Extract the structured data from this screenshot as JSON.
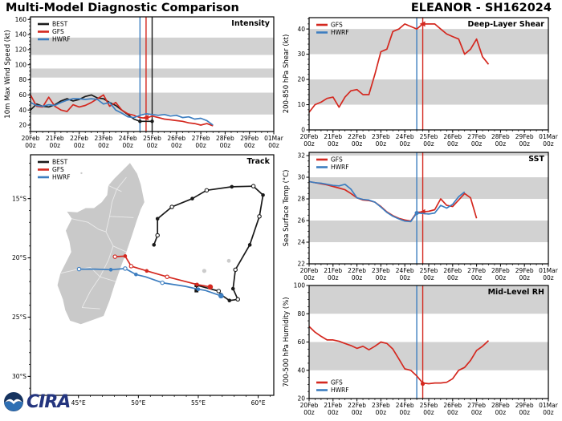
{
  "header": {
    "title_left": "Multi-Model Diagnostic Comparison",
    "title_right": "ELEANOR - SH162024"
  },
  "logo": {
    "cira_text": "CIRA",
    "noaa_icon": "noaa-emblem"
  },
  "colors": {
    "best": "#1a1a1a",
    "gfs": "#d4281f",
    "hwrf": "#3d7ec0",
    "band": "#d2d2d2",
    "land": "#c9c9c9",
    "land_border": "#ebebeb",
    "island": "#cccccc",
    "frame": "#000000"
  },
  "time_axis": {
    "dates": [
      "20Feb",
      "21Feb",
      "22Feb",
      "23Feb",
      "24Feb",
      "25Feb",
      "26Feb",
      "27Feb",
      "28Feb",
      "29Feb",
      "01Mar"
    ],
    "hour": "00z",
    "days_span": 10
  },
  "chart_data": [
    {
      "id": "intensity",
      "type": "line",
      "title": "Intensity",
      "ylabel": "10m Max Wind Speed (kt)",
      "ylim": [
        11.5,
        163.5
      ],
      "yticks": [
        20,
        40,
        60,
        80,
        100,
        120,
        140,
        160
      ],
      "yminor": 5,
      "bands": [
        [
          34,
          63
        ],
        [
          83,
          95
        ],
        [
          113,
          136
        ]
      ],
      "legend": [
        "BEST",
        "GFS",
        "HWRF"
      ],
      "legend_pos": "top-left",
      "vlines": [
        {
          "series": "HWRF",
          "t": 4.5
        },
        {
          "series": "GFS",
          "t": 4.75
        },
        {
          "series": "BEST",
          "t": 5.0
        }
      ],
      "series": [
        {
          "name": "BEST",
          "color_key": "best",
          "t0": 0,
          "dt": 0.25,
          "values": [
            40,
            48,
            45,
            44,
            47,
            52,
            55,
            52,
            54,
            58,
            60,
            56,
            55,
            50,
            46,
            40,
            34,
            28,
            25,
            25,
            25
          ],
          "dot_markers": [
            [
              4.5,
              25
            ],
            [
              5.0,
              25
            ]
          ]
        },
        {
          "name": "GFS",
          "color_key": "gfs",
          "t0": 0,
          "dt": 0.25,
          "values": [
            60,
            45,
            44,
            57,
            45,
            40,
            38,
            47,
            44,
            46,
            50,
            55,
            60,
            45,
            50,
            40,
            35,
            33,
            30,
            29,
            32,
            30,
            28,
            27,
            26,
            25,
            23,
            22,
            20,
            22,
            19
          ],
          "init_marker": {
            "t": 4.75,
            "v": 30,
            "shape": "tri"
          }
        },
        {
          "name": "HWRF",
          "color_key": "hwrf",
          "t0": 0,
          "dt": 0.25,
          "values": [
            50,
            46,
            45,
            47,
            46,
            50,
            53,
            55,
            55,
            54,
            55,
            54,
            48,
            50,
            40,
            36,
            31,
            30,
            33,
            35,
            34,
            33,
            34,
            32,
            33,
            30,
            31,
            28,
            29,
            26,
            20
          ]
        }
      ]
    },
    {
      "id": "shear",
      "type": "line",
      "title": "Deep-Layer Shear",
      "ylabel": "200-850 hPa Shear (kt)",
      "ylim": [
        0,
        44.5
      ],
      "yticks": [
        0,
        10,
        20,
        30,
        40
      ],
      "yminor": 2,
      "bands": [
        [
          10,
          20
        ],
        [
          30,
          40
        ]
      ],
      "legend": [
        "GFS",
        "HWRF"
      ],
      "legend_pos": "top-left",
      "vlines": [
        {
          "series": "HWRF",
          "t": 4.5
        },
        {
          "series": "GFS",
          "t": 4.75
        }
      ],
      "series": [
        {
          "name": "GFS",
          "color_key": "gfs",
          "t0": 0,
          "dt": 0.25,
          "values": [
            7,
            10,
            11,
            12.5,
            13,
            9,
            13,
            15.5,
            16,
            14,
            14,
            22,
            31,
            32,
            39,
            40,
            42,
            41,
            40,
            42,
            42,
            42,
            40,
            38,
            37,
            36,
            30,
            32,
            36,
            29,
            26
          ],
          "init_marker": {
            "t": 4.75,
            "v": 42,
            "shape": "tri"
          }
        }
      ]
    },
    {
      "id": "sst",
      "type": "line",
      "title": "SST",
      "ylabel": "Sea Surface Temp (°C)",
      "ylim": [
        22,
        32.3
      ],
      "yticks": [
        22,
        24,
        26,
        28,
        30,
        32
      ],
      "yminor": 0.5,
      "bands": [
        [
          24,
          26
        ],
        [
          28,
          30
        ],
        [
          32,
          32.3
        ]
      ],
      "legend": [
        "GFS",
        "HWRF"
      ],
      "legend_pos": "top-left",
      "vlines": [
        {
          "series": "HWRF",
          "t": 4.5
        },
        {
          "series": "GFS",
          "t": 4.75
        }
      ],
      "series": [
        {
          "name": "GFS",
          "color_key": "gfs",
          "t0": 0,
          "dt": 0.25,
          "values": [
            29.6,
            29.5,
            29.4,
            29.3,
            29.15,
            29.0,
            28.85,
            28.5,
            28.1,
            27.9,
            27.85,
            27.7,
            27.3,
            26.8,
            26.45,
            26.2,
            26.05,
            25.95,
            26.75,
            26.8,
            26.85,
            27.0,
            28.0,
            27.4,
            27.3,
            27.9,
            28.5,
            28.1,
            26.2
          ],
          "init_marker": {
            "t": 4.75,
            "v": 26.8,
            "shape": "tri"
          }
        },
        {
          "name": "HWRF",
          "color_key": "hwrf",
          "t0": 0,
          "dt": 0.25,
          "values": [
            29.6,
            29.5,
            29.45,
            29.35,
            29.25,
            29.2,
            29.35,
            28.9,
            28.1,
            27.95,
            27.9,
            27.7,
            27.25,
            26.75,
            26.4,
            26.15,
            25.95,
            25.9,
            26.7,
            26.65,
            26.6,
            26.7,
            27.4,
            27.15,
            27.5,
            28.2,
            28.65
          ],
          "init_marker": {
            "t": 4.5,
            "v": 26.7,
            "shape": "dot"
          }
        }
      ]
    },
    {
      "id": "rh",
      "type": "line",
      "title": "Mid-Level RH",
      "ylabel": "700-500 hPa Humidity (%)",
      "ylim": [
        20,
        100
      ],
      "yticks": [
        20,
        40,
        60,
        80,
        100
      ],
      "yminor": 5,
      "bands": [
        [
          40,
          60
        ],
        [
          80,
          100
        ]
      ],
      "legend": [
        "GFS",
        "HWRF"
      ],
      "legend_pos": "bottom-left",
      "vlines": [
        {
          "series": "HWRF",
          "t": 4.5
        },
        {
          "series": "GFS",
          "t": 4.75
        }
      ],
      "series": [
        {
          "name": "GFS",
          "color_key": "gfs",
          "t0": 0,
          "dt": 0.25,
          "values": [
            71,
            67,
            64,
            61.5,
            61.5,
            60.5,
            59,
            57.5,
            55.5,
            57,
            54.5,
            57,
            60,
            59,
            55,
            48,
            41,
            40,
            36,
            31,
            30.5,
            31,
            31,
            31.5,
            34,
            40,
            42,
            47,
            54,
            57,
            61
          ],
          "init_marker": {
            "t": 4.75,
            "v": 30.5,
            "shape": "dot"
          }
        }
      ]
    },
    {
      "id": "track",
      "type": "map",
      "title": "Track",
      "lon_range": [
        41,
        61.3
      ],
      "lat_range": [
        -31.6,
        -11.3
      ],
      "xticks": [
        {
          "v": 45,
          "label": "45°E"
        },
        {
          "v": 50,
          "label": "50°E"
        },
        {
          "v": 55,
          "label": "55°E"
        },
        {
          "v": 60,
          "label": "60°E"
        }
      ],
      "yticks": [
        {
          "v": -15,
          "label": "15°S"
        },
        {
          "v": -20,
          "label": "20°S"
        },
        {
          "v": -25,
          "label": "25°S"
        },
        {
          "v": -30,
          "label": "30°S"
        }
      ],
      "legend": [
        "BEST",
        "GFS",
        "HWRF"
      ],
      "legend_pos": "top-left",
      "tracks": [
        {
          "name": "BEST",
          "color_key": "best",
          "points": [
            [
              51.3,
              -18.9
            ],
            [
              51.6,
              -18.1
            ],
            [
              51.6,
              -16.7
            ],
            [
              52.8,
              -15.7
            ],
            [
              54.5,
              -15.0
            ],
            [
              55.7,
              -14.3
            ],
            [
              57.8,
              -14.0
            ],
            [
              59.6,
              -13.95
            ],
            [
              60.4,
              -14.7
            ],
            [
              60.1,
              -16.5
            ],
            [
              59.3,
              -18.9
            ],
            [
              58.1,
              -21.0
            ],
            [
              57.9,
              -22.6
            ],
            [
              58.3,
              -23.5
            ],
            [
              57.6,
              -23.6
            ],
            [
              56.9,
              -23.1
            ],
            [
              56.7,
              -22.8
            ],
            [
              54.85,
              -22.3
            ],
            [
              54.85,
              -22.75
            ]
          ],
          "markers": [
            "f",
            "o",
            "f",
            "o",
            "f",
            "o",
            "f",
            "o",
            "f",
            "o",
            "f",
            "o",
            "f",
            "o",
            "f",
            "f",
            "o",
            "s",
            "s"
          ]
        },
        {
          "name": "HWRF",
          "color_key": "hwrf",
          "points": [
            [
              56.9,
              -23.2
            ],
            [
              55.6,
              -22.75
            ],
            [
              55.0,
              -22.65
            ],
            [
              53.9,
              -22.4
            ],
            [
              52.0,
              -22.1
            ],
            [
              50.6,
              -21.6
            ],
            [
              49.8,
              -21.4
            ],
            [
              48.9,
              -20.9
            ],
            [
              47.7,
              -21.0
            ],
            [
              46.4,
              -20.95
            ],
            [
              45.05,
              -20.95
            ]
          ],
          "markers": [
            "init",
            "n",
            "f",
            "n",
            "o",
            "n",
            "f",
            "o",
            "f",
            "n",
            "o"
          ]
        },
        {
          "name": "GFS",
          "color_key": "gfs",
          "points": [
            [
              56.0,
              -22.45
            ],
            [
              54.9,
              -22.25
            ],
            [
              52.4,
              -21.6
            ],
            [
              50.7,
              -21.1
            ],
            [
              49.4,
              -20.7
            ],
            [
              48.9,
              -19.85
            ],
            [
              48.05,
              -19.9
            ]
          ],
          "markers": [
            "init",
            "f",
            "o",
            "f",
            "o",
            "f",
            "o"
          ]
        }
      ],
      "geography": {
        "madagascar": [
          [
            49.3,
            -12.0
          ],
          [
            49.9,
            -12.9
          ],
          [
            50.2,
            -13.8
          ],
          [
            50.5,
            -15.3
          ],
          [
            50.2,
            -15.9
          ],
          [
            49.85,
            -16.9
          ],
          [
            49.5,
            -18.0
          ],
          [
            49.0,
            -19.5
          ],
          [
            48.6,
            -20.6
          ],
          [
            48.0,
            -22.3
          ],
          [
            47.6,
            -23.6
          ],
          [
            47.1,
            -24.9
          ],
          [
            46.3,
            -25.2
          ],
          [
            45.2,
            -25.6
          ],
          [
            44.3,
            -25.3
          ],
          [
            43.9,
            -24.4
          ],
          [
            43.7,
            -23.5
          ],
          [
            43.25,
            -22.3
          ],
          [
            43.5,
            -21.3
          ],
          [
            44.0,
            -20.3
          ],
          [
            44.4,
            -19.5
          ],
          [
            44.25,
            -18.6
          ],
          [
            43.95,
            -17.7
          ],
          [
            44.45,
            -16.7
          ],
          [
            44.05,
            -16.1
          ],
          [
            44.9,
            -16.15
          ],
          [
            45.6,
            -15.8
          ],
          [
            46.3,
            -15.8
          ],
          [
            46.95,
            -15.3
          ],
          [
            47.4,
            -14.7
          ],
          [
            47.5,
            -13.9
          ],
          [
            48.0,
            -13.3
          ],
          [
            48.8,
            -12.5
          ]
        ],
        "inner_borders": [
          [
            [
              49.0,
              -13.2
            ],
            [
              48.2,
              -14.2
            ],
            [
              47.8,
              -15.3
            ],
            [
              47.6,
              -16.5
            ],
            [
              47.3,
              -17.8
            ],
            [
              47.9,
              -19.0
            ],
            [
              47.5,
              -20.2
            ],
            [
              46.8,
              -21.6
            ],
            [
              46.0,
              -22.8
            ],
            [
              45.3,
              -24.2
            ]
          ],
          [
            [
              44.45,
              -16.7
            ],
            [
              45.8,
              -17.0
            ],
            [
              46.7,
              -17.6
            ],
            [
              47.3,
              -17.8
            ]
          ],
          [
            [
              43.5,
              -21.3
            ],
            [
              44.8,
              -21.0
            ],
            [
              46.0,
              -20.8
            ],
            [
              46.8,
              -21.6
            ]
          ],
          [
            [
              47.9,
              -19.0
            ],
            [
              49.0,
              -19.5
            ]
          ],
          [
            [
              47.6,
              -16.5
            ],
            [
              49.6,
              -16.6
            ]
          ],
          [
            [
              46.8,
              -21.6
            ],
            [
              48.1,
              -22.0
            ]
          ],
          [
            [
              45.3,
              -24.2
            ],
            [
              46.8,
              -24.3
            ]
          ],
          [
            [
              47.5,
              -13.9
            ],
            [
              48.6,
              -14.4
            ]
          ]
        ],
        "islands": [
          {
            "name": "reunion",
            "lon": 55.5,
            "lat": -21.1,
            "r": 2.6
          },
          {
            "name": "mauritius",
            "lon": 57.55,
            "lat": -20.25,
            "r": 2.4
          },
          {
            "name": "mayotte",
            "lon": 45.25,
            "lat": -12.85,
            "r": 1.2
          }
        ]
      }
    }
  ]
}
